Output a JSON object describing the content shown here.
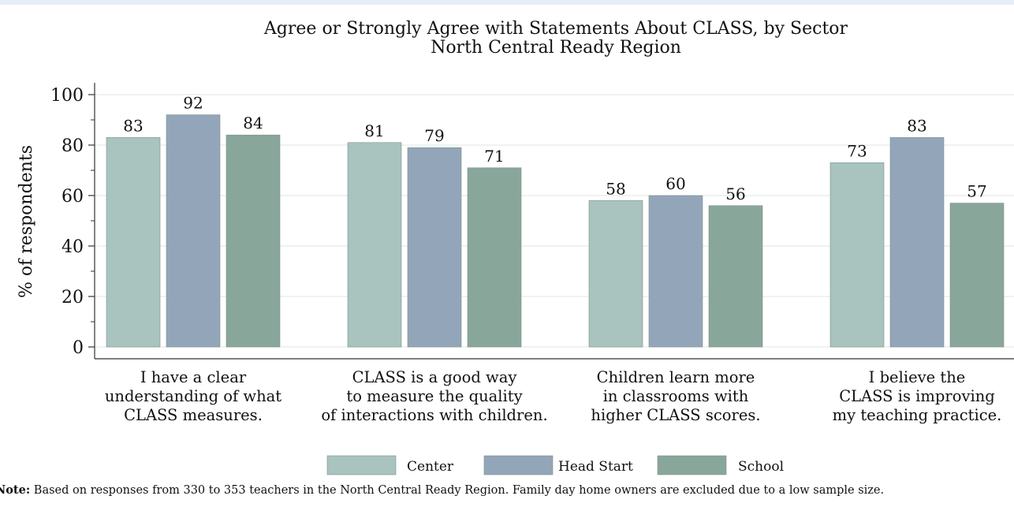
{
  "chart_data": {
    "type": "bar",
    "title": "Agree or Strongly Agree with Statements About CLASS, by Sector",
    "subtitle": "North Central Ready Region",
    "ylabel": "% of respondents",
    "xlabel": "",
    "ylim": [
      0,
      100
    ],
    "yticks": [
      0,
      20,
      40,
      60,
      80,
      100
    ],
    "grid": true,
    "legend_position": "bottom",
    "categories": [
      [
        "I have a clear",
        "understanding of what",
        "CLASS measures."
      ],
      [
        "CLASS is a good way",
        "to measure the quality",
        "of interactions with children."
      ],
      [
        "Children learn more",
        "in classrooms with",
        "higher CLASS scores."
      ],
      [
        "I believe the",
        "CLASS is improving",
        "my teaching practice."
      ]
    ],
    "series": [
      {
        "name": "Center",
        "color": "#a9c3bf",
        "values": [
          83,
          81,
          58,
          73
        ]
      },
      {
        "name": "Head Start",
        "color": "#93a6b9",
        "values": [
          92,
          79,
          60,
          83
        ]
      },
      {
        "name": "School",
        "color": "#89a69a",
        "values": [
          84,
          71,
          56,
          57
        ]
      }
    ]
  },
  "note": {
    "label": "Note:",
    "text": " Based on responses from 330 to 353 teachers in the North Central Ready Region. Family day home owners are excluded due to a low sample size."
  }
}
